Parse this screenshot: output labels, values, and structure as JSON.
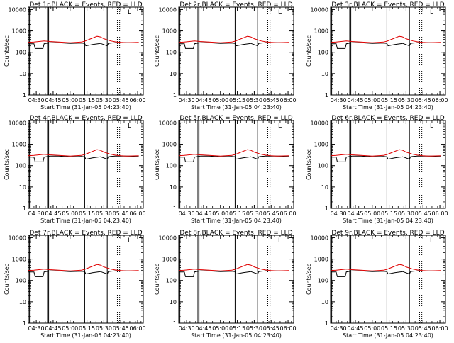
{
  "figure": {
    "panels": [
      {
        "detector": "1",
        "title": "Det 1r,BLACK = Events, RED = LLD"
      },
      {
        "detector": "2",
        "title": "Det 2r,BLACK = Events, RED = LLD"
      },
      {
        "detector": "3",
        "title": "Det 3r,BLACK = Events, RED = LLD"
      },
      {
        "detector": "4",
        "title": "Det 4r,BLACK = Events, RED = LLD"
      },
      {
        "detector": "5",
        "title": "Det 5r,BLACK = Events, RED = LLD"
      },
      {
        "detector": "6",
        "title": "Det 6r,BLACK = Events, RED = LLD"
      },
      {
        "detector": "7",
        "title": "Det 7r,BLACK = Events, RED = LLD"
      },
      {
        "detector": "8",
        "title": "Det 8r,BLACK = Events, RED = LLD"
      },
      {
        "detector": "9",
        "title": "Det 9r,BLACK = Events, RED = LLD"
      }
    ],
    "ylabel": "Counts/sec",
    "xlabel": "Start Time (31-Jan-05 04:23:40)",
    "corner_glyph": "L",
    "colors": {
      "events": "#000000",
      "lld": "#e00000",
      "axes": "#000000"
    }
  },
  "chart_data": {
    "type": "line",
    "yscale": "log",
    "ylim": [
      1,
      13000
    ],
    "xlim": [
      "04:23",
      "06:05"
    ],
    "x_ticks": [
      "04:30",
      "04:45",
      "05:00",
      "05:15",
      "05:30",
      "05:45",
      "06:00"
    ],
    "y_ticks": [
      "1",
      "10",
      "100",
      "1000",
      "10000"
    ],
    "vertical_lines_solid": [
      "04:24",
      "04:40",
      "04:41",
      "05:13",
      "05:33"
    ],
    "vertical_lines_dotted": [
      "05:42",
      "05:44"
    ],
    "series": [
      {
        "name": "BLACK = Events",
        "x": [
          "04:23",
          "04:28",
          "04:29",
          "04:36",
          "04:37",
          "04:42",
          "04:50",
          "05:00",
          "05:10",
          "05:13",
          "05:14",
          "05:20",
          "05:27",
          "05:33",
          "05:34",
          "05:36",
          "05:40",
          "05:45",
          "05:50",
          "05:56",
          "06:01"
        ],
        "values": [
          250,
          250,
          150,
          150,
          250,
          280,
          280,
          260,
          270,
          260,
          200,
          230,
          260,
          200,
          260,
          270,
          280,
          280,
          280,
          275,
          280
        ]
      },
      {
        "name": "RED = LLD",
        "x": [
          "04:23",
          "04:28",
          "04:37",
          "04:42",
          "04:50",
          "05:00",
          "05:10",
          "05:13",
          "05:18",
          "05:24",
          "05:27",
          "05:30",
          "05:36",
          "05:40",
          "05:45",
          "05:50",
          "05:56",
          "06:01"
        ],
        "values": [
          290,
          300,
          340,
          320,
          300,
          280,
          300,
          330,
          420,
          560,
          520,
          430,
          340,
          310,
          290,
          280,
          285,
          290
        ]
      }
    ]
  }
}
